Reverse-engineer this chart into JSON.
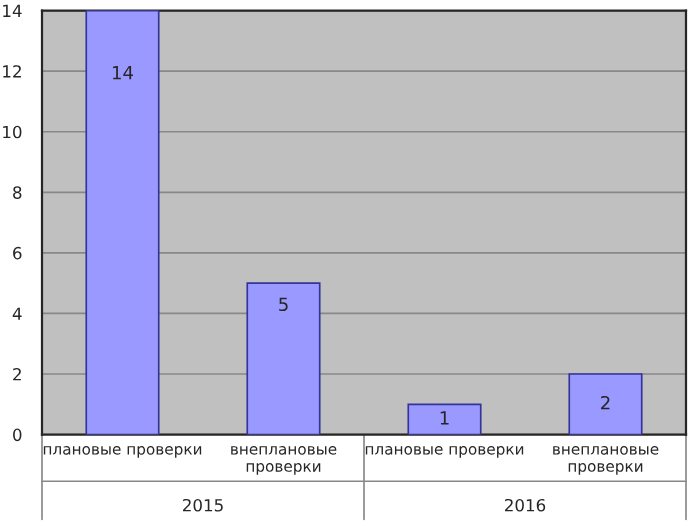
{
  "chart_data": {
    "type": "bar",
    "categories": [
      "плановые проверки",
      "внеплановые проверки",
      "плановые проверки",
      "внеплановые проверки"
    ],
    "values": [
      14,
      5,
      1,
      2
    ],
    "color": "#9999ff",
    "ylim": [
      0,
      14
    ],
    "yticks": [
      0,
      2,
      4,
      6,
      8,
      10,
      12,
      14
    ],
    "grid": "y",
    "data_labels": true,
    "legend": false,
    "annotations": [
      "2015",
      "2016"
    ]
  }
}
